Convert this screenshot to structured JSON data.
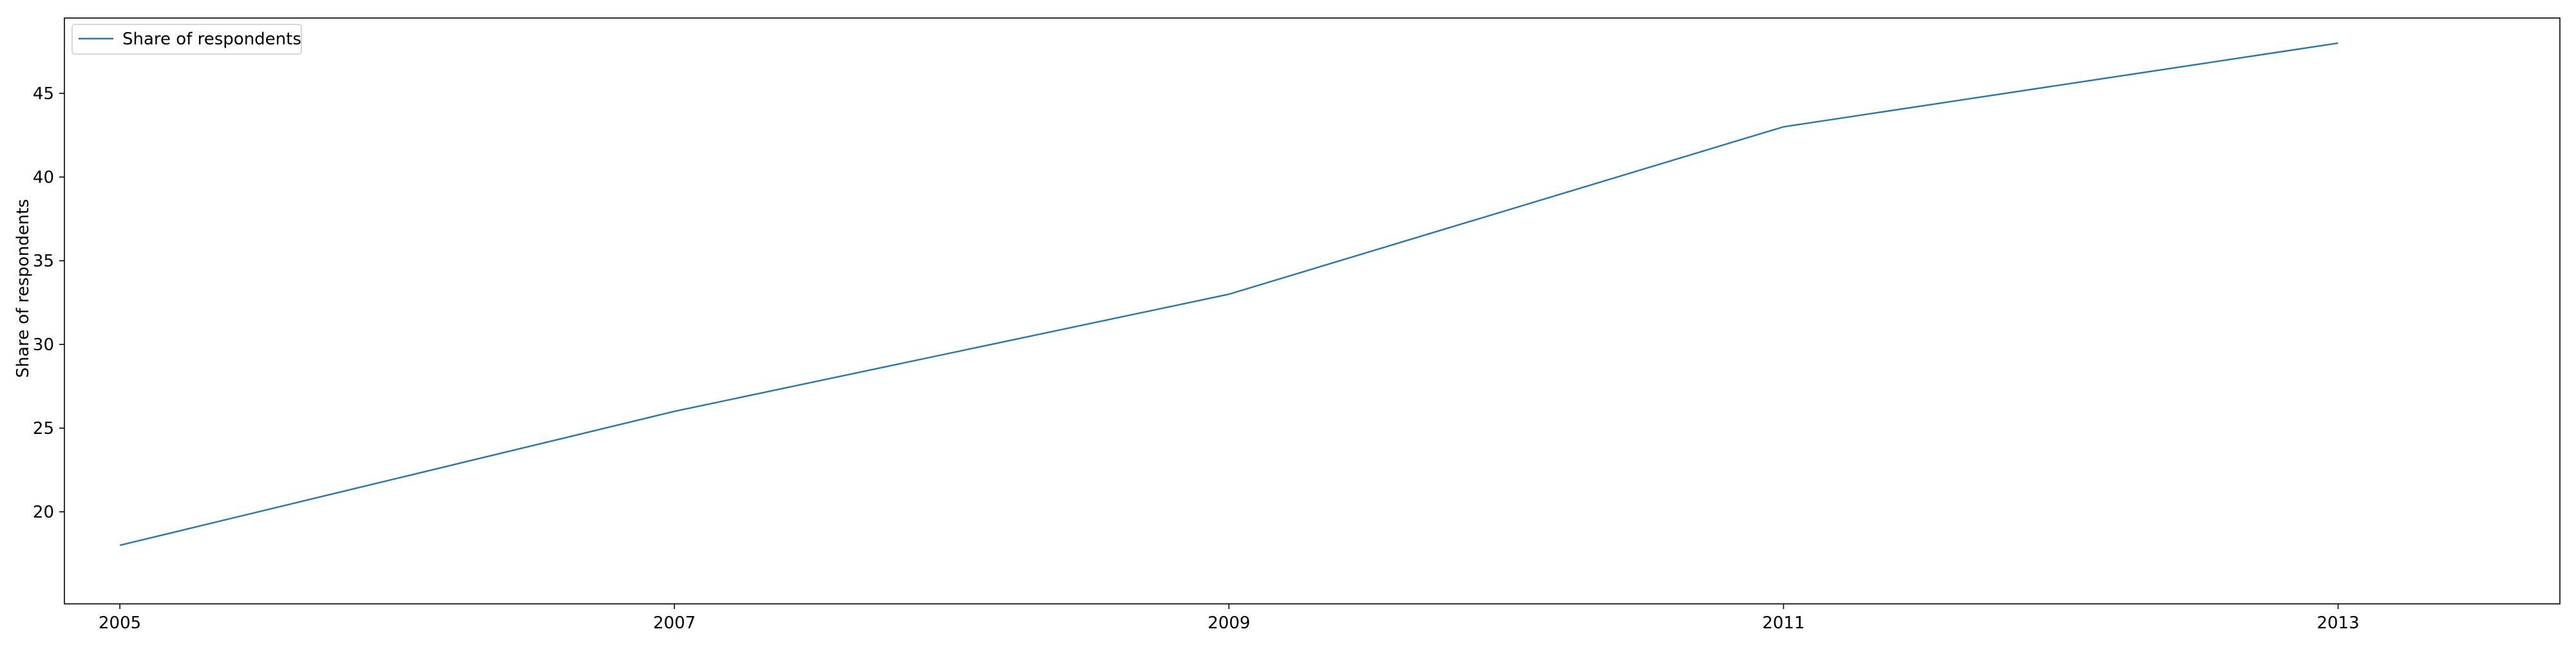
{
  "chart_data": {
    "type": "line",
    "title": "",
    "xlabel": "",
    "ylabel": "Share of respondents",
    "x": [
      2005,
      2006,
      2007,
      2008,
      2009,
      2010,
      2011,
      2012,
      2013
    ],
    "x_tick_labels": [
      "2005",
      "2007",
      "2009",
      "2011",
      "2013"
    ],
    "y_ticks": [
      20,
      25,
      30,
      35,
      40,
      45
    ],
    "xlim": [
      2004.8,
      2013.8
    ],
    "ylim": [
      14.5,
      49.5
    ],
    "grid": false,
    "legend_position": "top-left",
    "series": [
      {
        "name": "Share of respondents",
        "color": "#1f77b4",
        "values": [
          18,
          22,
          26,
          29.5,
          33,
          38,
          43,
          45.5,
          48
        ]
      }
    ]
  }
}
